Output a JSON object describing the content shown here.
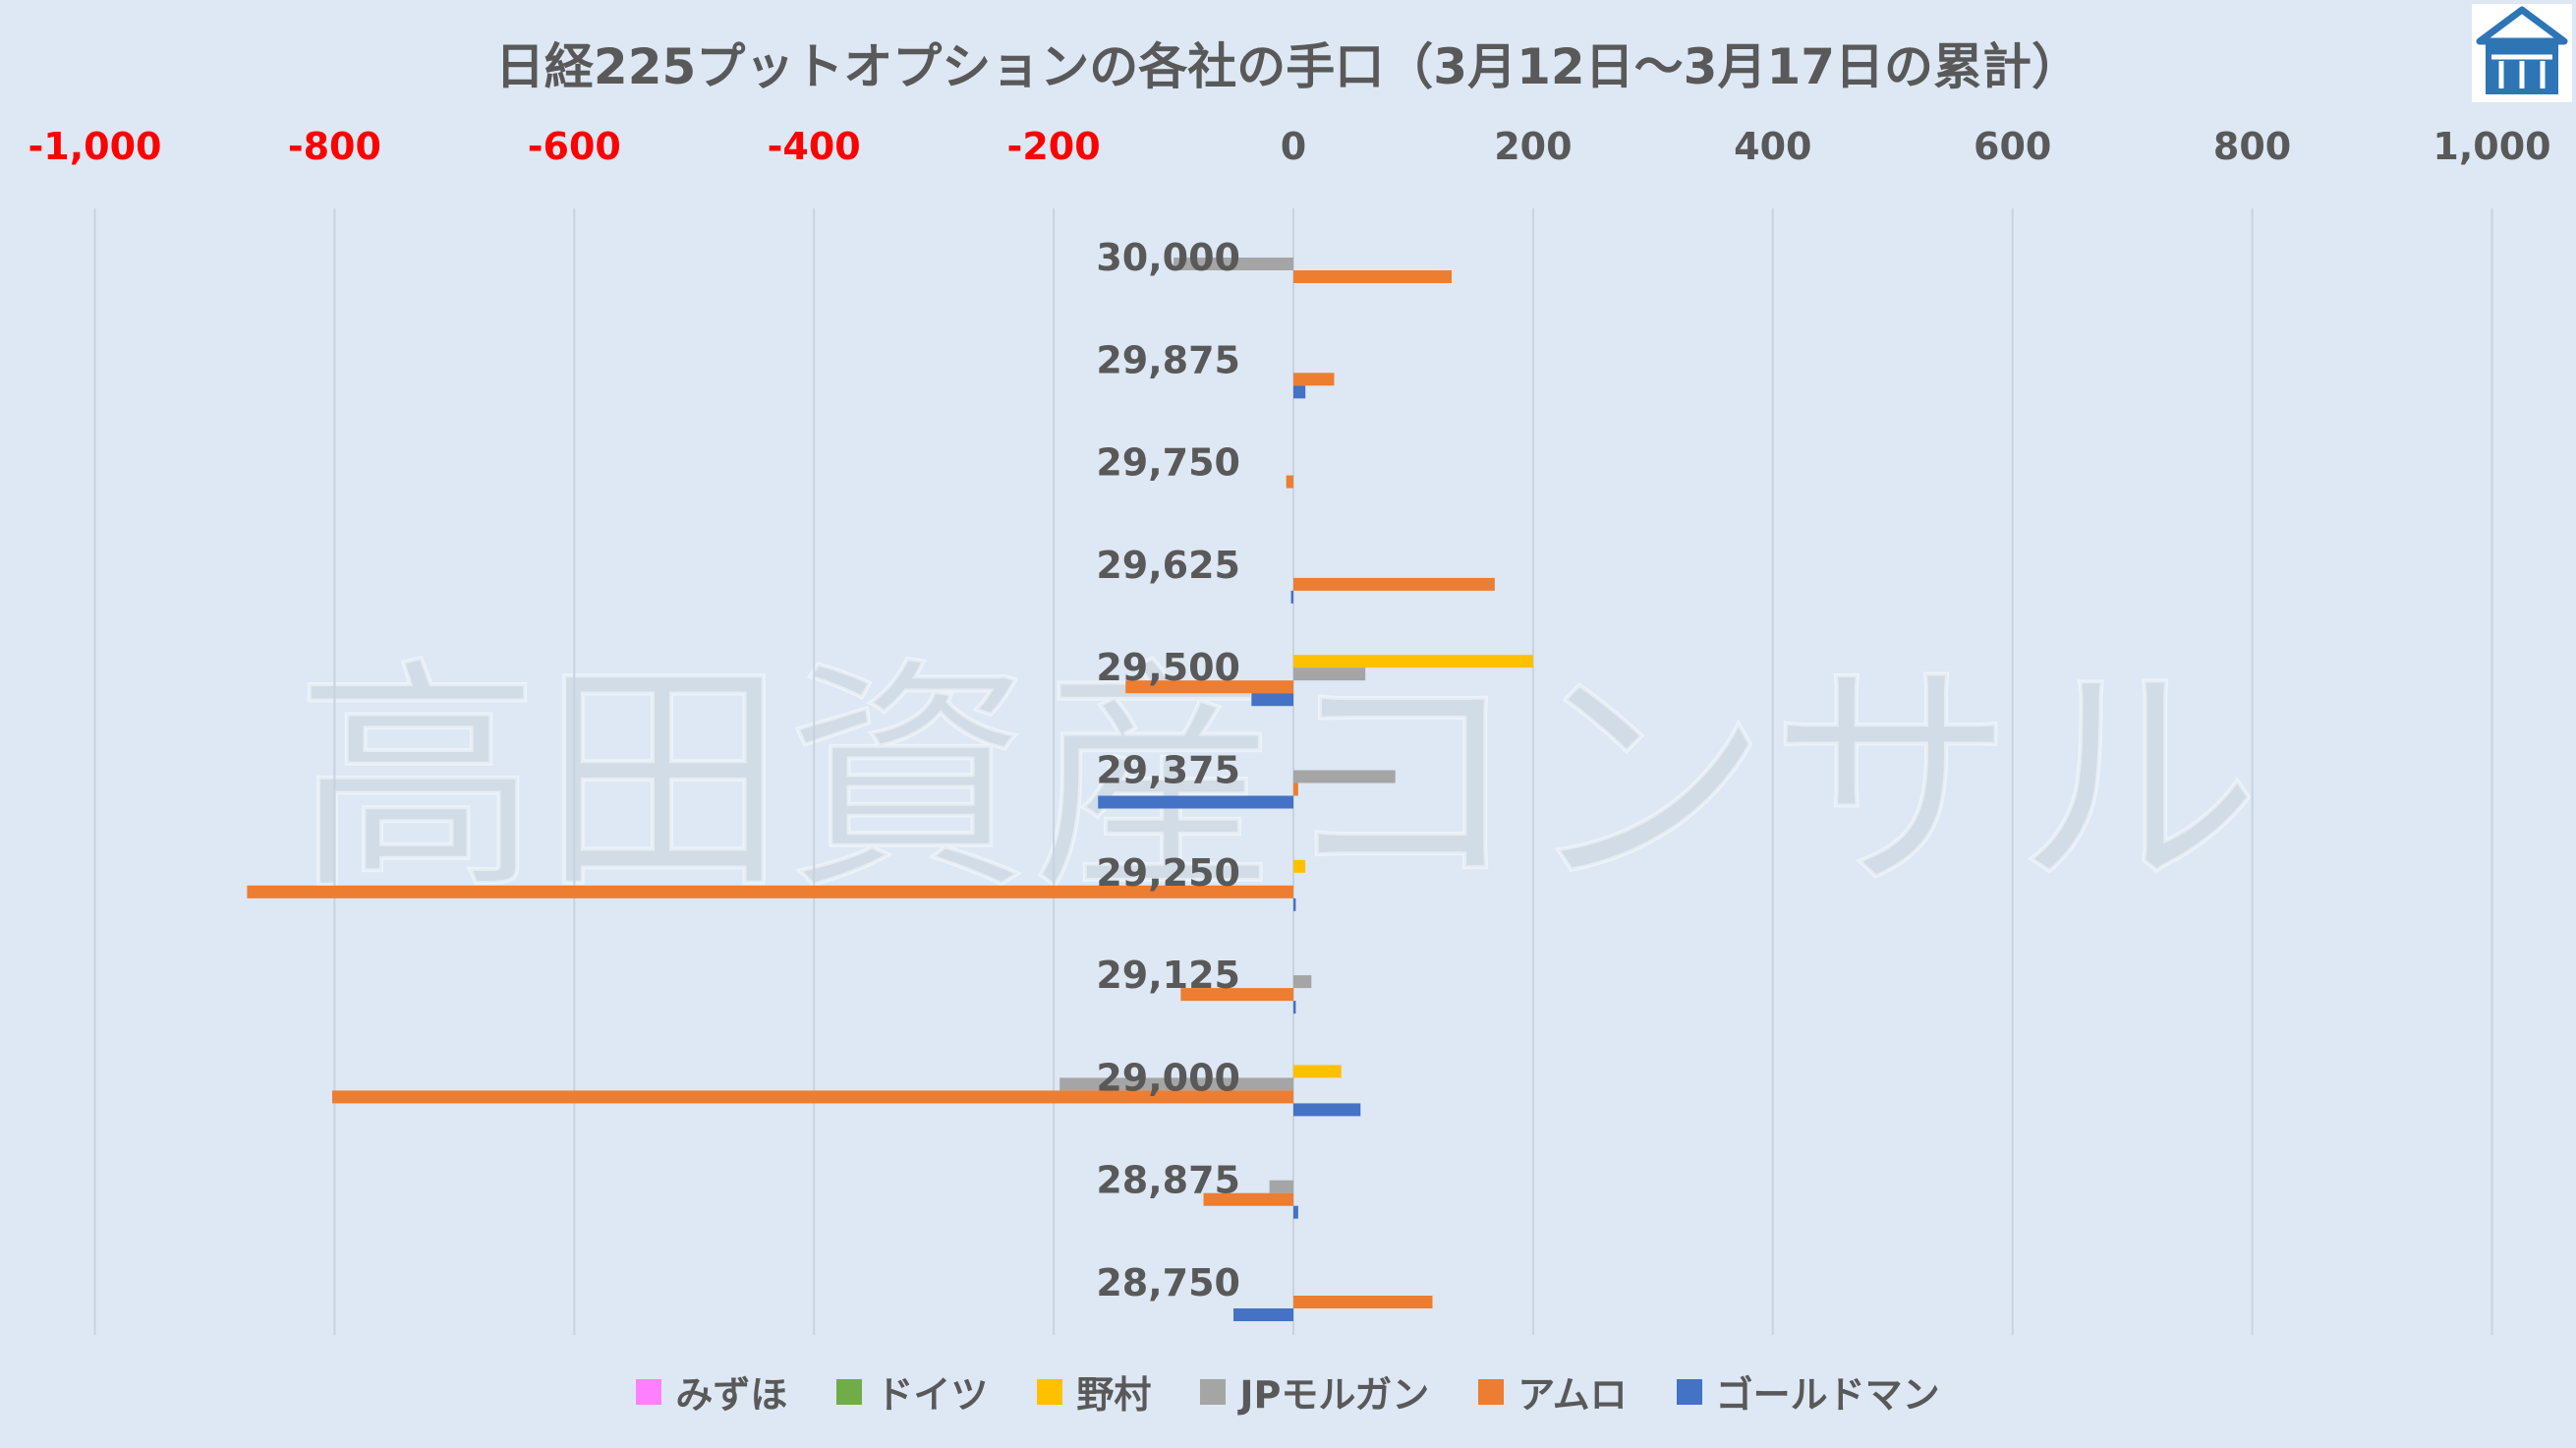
{
  "chart_data": {
    "type": "bar",
    "orientation": "horizontal",
    "title": "日経225プットオプションの各社の手口（3月12日～3月17日の累計）",
    "watermark": "高田資産コンサル",
    "categories": [
      "30,000",
      "29,875",
      "29,750",
      "29,625",
      "29,500",
      "29,375",
      "29,250",
      "29,125",
      "29,000",
      "28,875",
      "28,750"
    ],
    "x_ticks": [
      -1000,
      -800,
      -600,
      -400,
      -200,
      0,
      200,
      400,
      600,
      800,
      1000
    ],
    "x_tick_labels": [
      "-1,000",
      "-800",
      "-600",
      "-400",
      "-200",
      "0",
      "200",
      "400",
      "600",
      "800",
      "1,000"
    ],
    "xlim": [
      -1000,
      1000
    ],
    "negative_tick_color": "#ff0000",
    "positive_tick_color": "#595959",
    "grid": "vertical",
    "legend_position": "bottom",
    "series": [
      {
        "name": "みずほ",
        "color": "#ff80ff",
        "values": [
          0,
          0,
          0,
          0,
          0,
          0,
          0,
          0,
          0,
          0,
          0
        ]
      },
      {
        "name": "ドイツ",
        "color": "#70ad47",
        "values": [
          0,
          0,
          0,
          0,
          0,
          0,
          0,
          0,
          0,
          0,
          0
        ]
      },
      {
        "name": "野村",
        "color": "#ffc000",
        "values": [
          0,
          0,
          0,
          0,
          200,
          0,
          10,
          0,
          40,
          0,
          0
        ]
      },
      {
        "name": "JPモルガン",
        "color": "#a5a5a5",
        "values": [
          -100,
          0,
          0,
          0,
          60,
          85,
          0,
          15,
          -195,
          -20,
          0
        ]
      },
      {
        "name": "アムロ",
        "color": "#ed7d31",
        "values": [
          132,
          34,
          -6,
          168,
          -140,
          4,
          -873,
          -94,
          -802,
          -75,
          116
        ]
      },
      {
        "name": "ゴールドマン",
        "color": "#4472c4",
        "values": [
          0,
          10,
          0,
          -2,
          -35,
          -163,
          2,
          2,
          56,
          4,
          -50
        ]
      }
    ]
  }
}
